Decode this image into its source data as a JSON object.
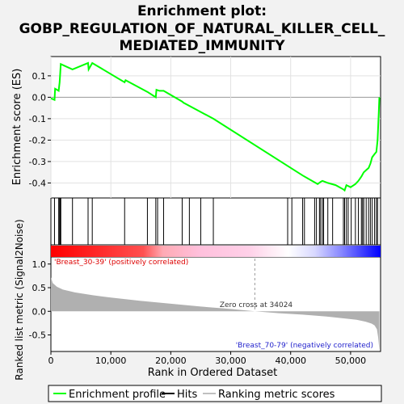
{
  "chart_data": {
    "type": "line",
    "title_lines": [
      "Enrichment plot:",
      "GOBP_REGULATION_OF_NATURAL_KILLER_CELL_",
      "MEDIATED_IMMUNITY"
    ],
    "es_panel": {
      "ylabel": "Enrichment score (ES)",
      "ylim": [
        -0.47,
        0.19
      ],
      "yticks": [
        -0.4,
        -0.3,
        -0.2,
        -0.1,
        0.0,
        0.1
      ],
      "ytick_labels": [
        "-0.4",
        "-0.3",
        "-0.2",
        "-0.1",
        "0.0",
        "0.1"
      ],
      "grid": true,
      "series": [
        {
          "name": "Enrichment profile",
          "color": "#00ff00",
          "x": [
            0,
            600,
            700,
            1300,
            1450,
            1550,
            1650,
            3600,
            6200,
            6300,
            6900,
            12300,
            12450,
            16100,
            17500,
            17600,
            18100,
            18800,
            21900,
            22100,
            27100,
            42000,
            44500,
            45000,
            45300,
            46200,
            47500,
            48800,
            49000,
            49300,
            50000,
            50800,
            51300,
            51800,
            52200,
            52600,
            53000,
            53300,
            53600,
            54000,
            54300,
            54500,
            54600,
            54700,
            54800
          ],
          "y": [
            -0.005,
            -0.012,
            0.04,
            0.03,
            0.07,
            0.11,
            0.155,
            0.13,
            0.16,
            0.13,
            0.16,
            0.07,
            0.08,
            0.025,
            0.0,
            0.035,
            0.03,
            0.03,
            -0.02,
            -0.025,
            -0.1,
            -0.365,
            -0.405,
            -0.395,
            -0.39,
            -0.4,
            -0.41,
            -0.43,
            -0.435,
            -0.41,
            -0.42,
            -0.405,
            -0.39,
            -0.37,
            -0.35,
            -0.34,
            -0.33,
            -0.31,
            -0.28,
            -0.265,
            -0.255,
            -0.2,
            -0.14,
            -0.07,
            0.0
          ]
        }
      ]
    },
    "hits": {
      "name": "Hits",
      "x": [
        600,
        1300,
        1450,
        1550,
        1650,
        3600,
        6200,
        6900,
        12300,
        16100,
        17500,
        17800,
        18800,
        21900,
        23100,
        25000,
        27100,
        39500,
        40200,
        42000,
        42300,
        44000,
        44300,
        44800,
        45000,
        45300,
        45500,
        46200,
        47000,
        48800,
        49000,
        49300,
        49600,
        50100,
        50800,
        51300,
        51800,
        52000,
        52200,
        52600,
        53000,
        53300,
        53600,
        54000,
        54300,
        54500
      ]
    },
    "rank_gradient": {
      "left_label": "'Breast_30-39' (positively correlated)",
      "right_label": "'Breast_70-79' (negatively correlated)",
      "left_color": "#ff0000",
      "right_color": "#0000ff"
    },
    "metric_panel": {
      "ylabel": "Ranked list metric (Signal2Noise)",
      "ylim": [
        -0.85,
        1.15
      ],
      "yticks": [
        -0.5,
        0.0,
        0.5,
        1.0
      ],
      "ytick_labels": [
        "-0.5",
        "0.0",
        "0.5",
        "1.0"
      ],
      "zero_cross_label": "Zero cross at 34024",
      "zero_cross": 34024,
      "fill_color": "#b0b0b0",
      "x": [
        0,
        300,
        1000,
        2000,
        4000,
        7000,
        10000,
        15000,
        20000,
        25000,
        30000,
        34024,
        38000,
        42000,
        46000,
        49000,
        51000,
        52500,
        53500,
        54000,
        54400,
        54600,
        54800
      ],
      "y": [
        0.72,
        0.6,
        0.52,
        0.46,
        0.4,
        0.34,
        0.29,
        0.22,
        0.16,
        0.1,
        0.05,
        0.0,
        -0.04,
        -0.07,
        -0.11,
        -0.15,
        -0.18,
        -0.22,
        -0.26,
        -0.3,
        -0.38,
        -0.55,
        -0.82
      ]
    },
    "xaxis": {
      "label": "Rank in Ordered Dataset",
      "xlim": [
        0,
        55000
      ],
      "ticks": [
        0,
        10000,
        20000,
        30000,
        40000,
        50000
      ],
      "tick_labels": [
        "0",
        "10,000",
        "20,000",
        "30,000",
        "40,000",
        "50,000"
      ]
    },
    "legend": {
      "placement": "bottom",
      "entries": [
        {
          "label": "Enrichment profile",
          "color": "#00ff00"
        },
        {
          "label": "Hits",
          "color": "#000000"
        },
        {
          "label": "Ranking metric scores",
          "color": "#c0c0c0"
        }
      ]
    }
  }
}
